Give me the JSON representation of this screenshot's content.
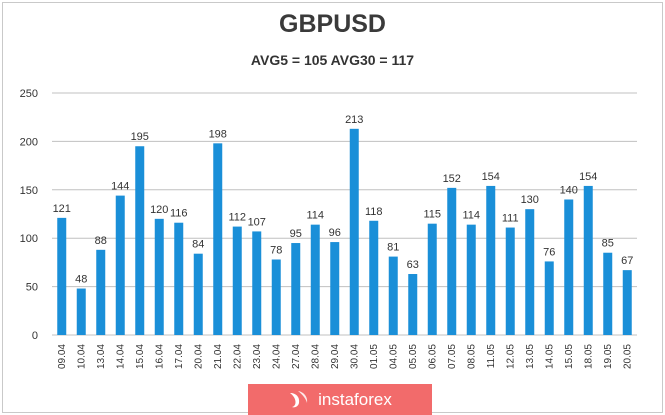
{
  "title": "GBPUSD",
  "subtitle": "AVG5 = 105 AVG30 = 117",
  "logo": {
    "text": "instaforex",
    "color": "#f26b6b"
  },
  "chart_data": {
    "type": "bar",
    "title": "GBPUSD",
    "subtitle": "AVG5 = 105 AVG30 = 117",
    "categories": [
      "09.04",
      "10.04",
      "13.04",
      "14.04",
      "15.04",
      "16.04",
      "17.04",
      "20.04",
      "21.04",
      "22.04",
      "23.04",
      "24.04",
      "27.04",
      "28.04",
      "29.04",
      "30.04",
      "01.05",
      "04.05",
      "05.05",
      "06.05",
      "07.05",
      "08.05",
      "11.05",
      "12.05",
      "13.05",
      "14.05",
      "15.05",
      "18.05",
      "19.05",
      "20.05"
    ],
    "values": [
      121,
      48,
      88,
      144,
      195,
      120,
      116,
      84,
      198,
      112,
      107,
      78,
      95,
      114,
      96,
      213,
      118,
      81,
      63,
      115,
      152,
      114,
      154,
      111,
      130,
      76,
      140,
      154,
      85,
      67
    ],
    "ylim": [
      0,
      250
    ],
    "yticks": [
      0,
      50,
      100,
      150,
      200,
      250
    ],
    "grid": true,
    "xlabel": "",
    "ylabel": "",
    "bar_color": "#1a8fd8",
    "grid_color": "#c0c0c0"
  }
}
